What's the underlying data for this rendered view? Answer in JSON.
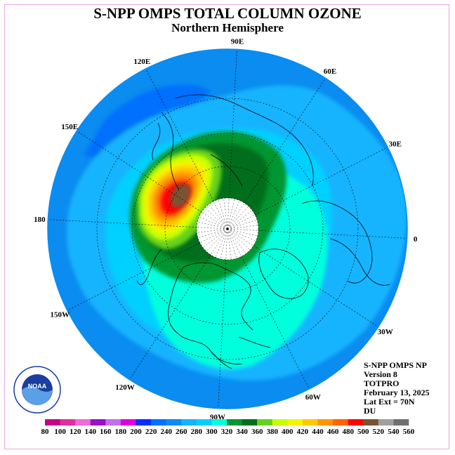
{
  "title": "S-NPP OMPS TOTAL COLUMN OZONE",
  "subtitle": "Northern Hemisphere",
  "longitude_labels": [
    {
      "label": "90E",
      "lon": 90
    },
    {
      "label": "60E",
      "lon": 60
    },
    {
      "label": "30E",
      "lon": 30
    },
    {
      "label": "0",
      "lon": 0
    },
    {
      "label": "30W",
      "lon": -30
    },
    {
      "label": "60W",
      "lon": -60
    },
    {
      "label": "90W",
      "lon": -90
    },
    {
      "label": "120W",
      "lon": -120
    },
    {
      "label": "150W",
      "lon": -150
    },
    {
      "label": "180",
      "lon": 180
    },
    {
      "label": "150E",
      "lon": 150
    },
    {
      "label": "120E",
      "lon": 120
    }
  ],
  "info": {
    "line1": "S-NPP OMPS NP",
    "line2": "Version 8",
    "line3": "TOTPRO",
    "line4": "February 13, 2025",
    "line5": "Lat Ext = 70N",
    "line6": "DU"
  },
  "logo": {
    "text": "NOAA",
    "ring_text": "NATIONAL OCEANIC AND ATMOSPHERIC ADMINISTRATION · U.S. DEPARTMENT OF COMMERCE"
  },
  "colorbar": {
    "ticks": [
      "80",
      "100",
      "120",
      "140",
      "160",
      "180",
      "200",
      "220",
      "240",
      "260",
      "280",
      "300",
      "320",
      "340",
      "360",
      "380",
      "400",
      "420",
      "440",
      "460",
      "480",
      "500",
      "520",
      "540",
      "560"
    ],
    "colors": [
      "#c8008c",
      "#e0309c",
      "#f06ad8",
      "#9a10c8",
      "#c070e8",
      "#e000e0",
      "#0030ff",
      "#0070ff",
      "#0a8cf0",
      "#14b4ff",
      "#00d0ff",
      "#00ffdc",
      "#009632",
      "#006e1e",
      "#66d21e",
      "#c8ff00",
      "#f5f500",
      "#ffc800",
      "#ff9600",
      "#ff6400",
      "#ff0000",
      "#7a5232",
      "#a0a0a0",
      "#707070"
    ]
  },
  "chart_data": {
    "type": "polar_map",
    "projection": "north polar stereographic",
    "variable": "total column ozone",
    "units": "DU",
    "date": "February 13, 2025",
    "lat_extent": "70N",
    "features": [
      {
        "region": "eastern Siberia / Sea of Okhotsk",
        "peak_value_du": 500,
        "range": [
          480,
          520
        ]
      },
      {
        "region": "Arctic ring around polar night",
        "range": [
          320,
          360
        ]
      },
      {
        "region": "North America / North Atlantic",
        "range": [
          300,
          320
        ]
      },
      {
        "region": "northern Pacific",
        "range": [
          260,
          300
        ]
      },
      {
        "region": "tropics",
        "range": [
          240,
          280
        ]
      }
    ]
  }
}
